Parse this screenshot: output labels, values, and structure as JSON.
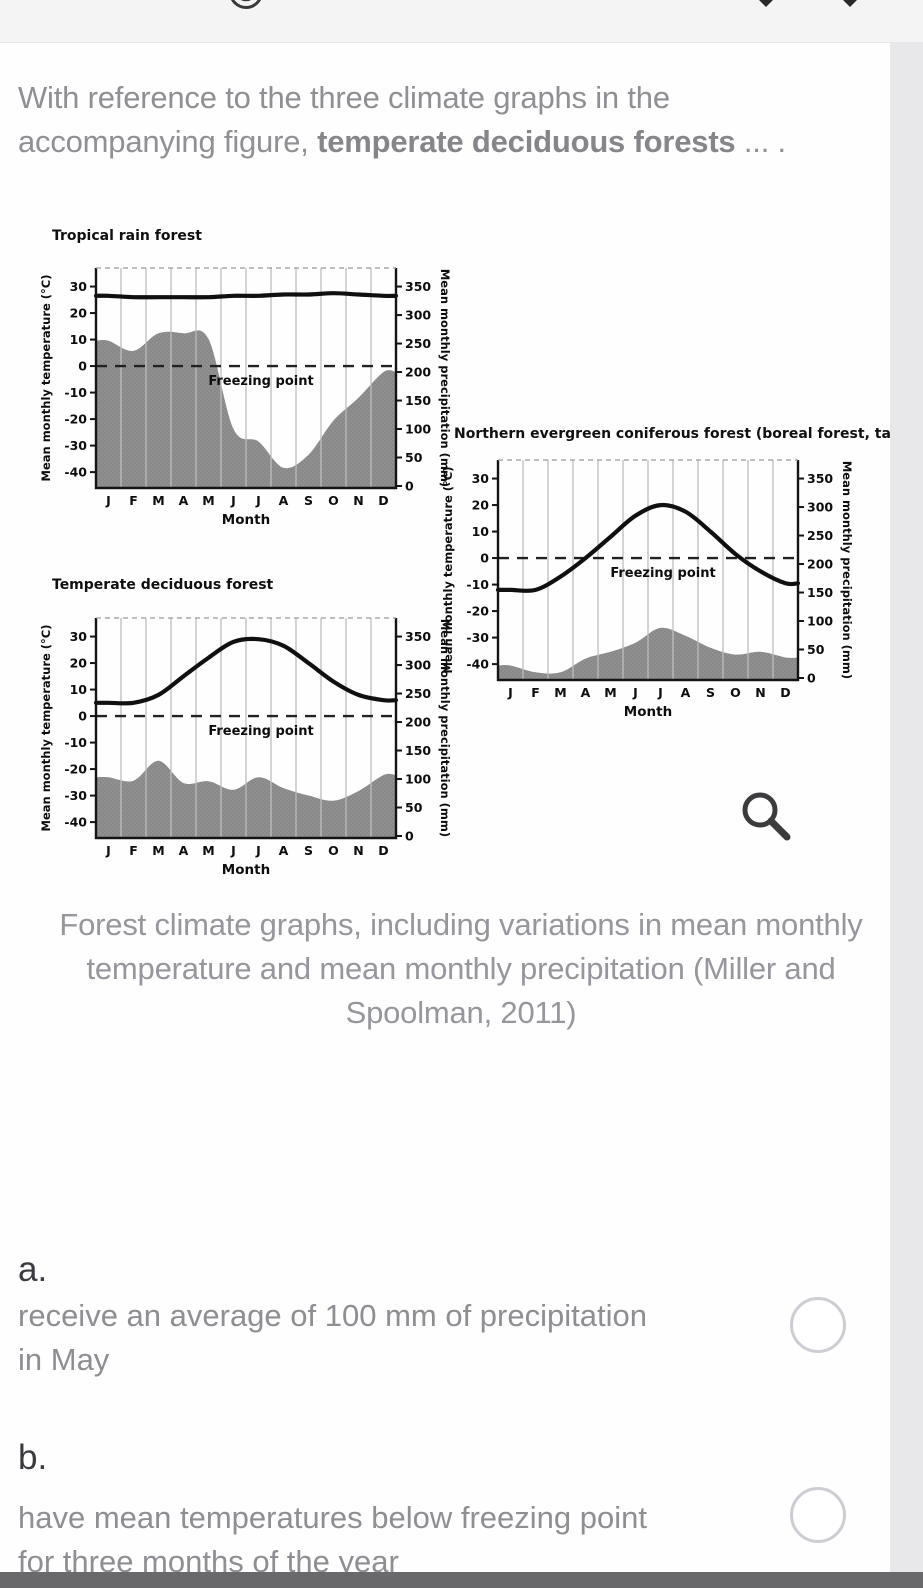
{
  "question": {
    "segments": [
      {
        "text": "With reference to the three climate graphs in the accompanying figure, ",
        "bold": false
      },
      {
        "text": "temperate deciduous forests",
        "bold": true
      },
      {
        "text": " ... .",
        "bold": false
      }
    ]
  },
  "figure": {
    "caption": "Forest climate graphs, including variations in mean monthly temperature and mean monthly precipitation (Miller and Spoolman, 2011)",
    "months": [
      "J",
      "F",
      "M",
      "A",
      "M",
      "J",
      "J",
      "A",
      "S",
      "O",
      "N",
      "D"
    ],
    "xlabel": "Month",
    "left_axis_label": "Mean monthly temperature (°C)",
    "right_axis_label": "Mean monthly precipitation (mm)",
    "temp_ticks": [
      30,
      20,
      10,
      0,
      -10,
      -20,
      -30,
      -40
    ],
    "precip_ticks": [
      350,
      300,
      250,
      200,
      150,
      100,
      50,
      0
    ],
    "freezing_label": "Freezing point",
    "zoom_icon": "magnifying-glass"
  },
  "chart_data": [
    {
      "type": "line",
      "title": "Tropical rain forest",
      "categories": [
        "J",
        "F",
        "M",
        "A",
        "M",
        "J",
        "J",
        "A",
        "S",
        "O",
        "N",
        "D"
      ],
      "xlabel": "Month",
      "series": [
        {
          "name": "Mean monthly temperature (°C)",
          "axis": "left",
          "style": "line",
          "values": [
            26.5,
            26,
            26,
            26,
            26,
            26.5,
            26.5,
            27,
            27,
            27.5,
            27,
            26.5
          ]
        },
        {
          "name": "Mean monthly precipitation (mm)",
          "axis": "right",
          "style": "area",
          "values": [
            255,
            237,
            268,
            268,
            258,
            100,
            78,
            32,
            55,
            115,
            155,
            200
          ]
        }
      ],
      "ylim_left": [
        -40,
        30
      ],
      "ylim_right": [
        0,
        350
      ],
      "annotation": "Freezing point dashed line at 0°C",
      "grid": true,
      "legend": false
    },
    {
      "type": "line",
      "title": "Temperate deciduous forest",
      "categories": [
        "J",
        "F",
        "M",
        "A",
        "M",
        "J",
        "J",
        "A",
        "S",
        "O",
        "N",
        "D"
      ],
      "xlabel": "Month",
      "series": [
        {
          "name": "Mean monthly temperature (°C)",
          "axis": "left",
          "style": "line",
          "values": [
            5,
            5,
            8,
            15,
            22,
            28,
            29,
            26.5,
            20,
            13,
            8,
            6
          ]
        },
        {
          "name": "Mean monthly precipitation (mm)",
          "axis": "right",
          "style": "area",
          "values": [
            103,
            97,
            132,
            93,
            96,
            81,
            103,
            84,
            71,
            62,
            79,
            107
          ]
        }
      ],
      "ylim_left": [
        -40,
        30
      ],
      "ylim_right": [
        0,
        350
      ],
      "annotation": "Freezing point dashed line at 0°C",
      "grid": true,
      "legend": false
    },
    {
      "type": "line",
      "title": "Northern evergreen coniferous forest (boreal forest, taiga)",
      "categories": [
        "J",
        "F",
        "M",
        "A",
        "M",
        "J",
        "J",
        "A",
        "S",
        "O",
        "N",
        "D"
      ],
      "xlabel": "Month",
      "series": [
        {
          "name": "Mean monthly temperature (°C)",
          "axis": "left",
          "style": "line",
          "values": [
            -12,
            -12,
            -7,
            0,
            8,
            16,
            20,
            17.5,
            10,
            1.5,
            -5,
            -9.5
          ]
        },
        {
          "name": "Mean monthly precipitation (mm)",
          "axis": "right",
          "style": "area",
          "values": [
            22,
            10,
            10,
            34,
            46,
            62,
            88,
            74,
            53,
            41,
            46,
            36
          ]
        }
      ],
      "ylim_left": [
        -40,
        30
      ],
      "ylim_right": [
        0,
        350
      ],
      "annotation": "Freezing point dashed line at 0°C",
      "grid": true,
      "legend": false
    }
  ],
  "options": [
    {
      "letter": "a.",
      "text": "receive an average of 100 mm of precipitation in May",
      "selected": false
    },
    {
      "letter": "b.",
      "text": "have mean temperatures below freezing point for three months of the year",
      "selected": false
    }
  ],
  "colors": {
    "temp_line": "#101010",
    "precip_area": "#909090",
    "grid": "#bdbdbd",
    "question_text": "#8f8f94",
    "caption_text": "#96969c",
    "bottom_bar": "#69696b",
    "scrollbar_track": "#e8e8ea",
    "topbar_bg": "#f4f4f5"
  }
}
